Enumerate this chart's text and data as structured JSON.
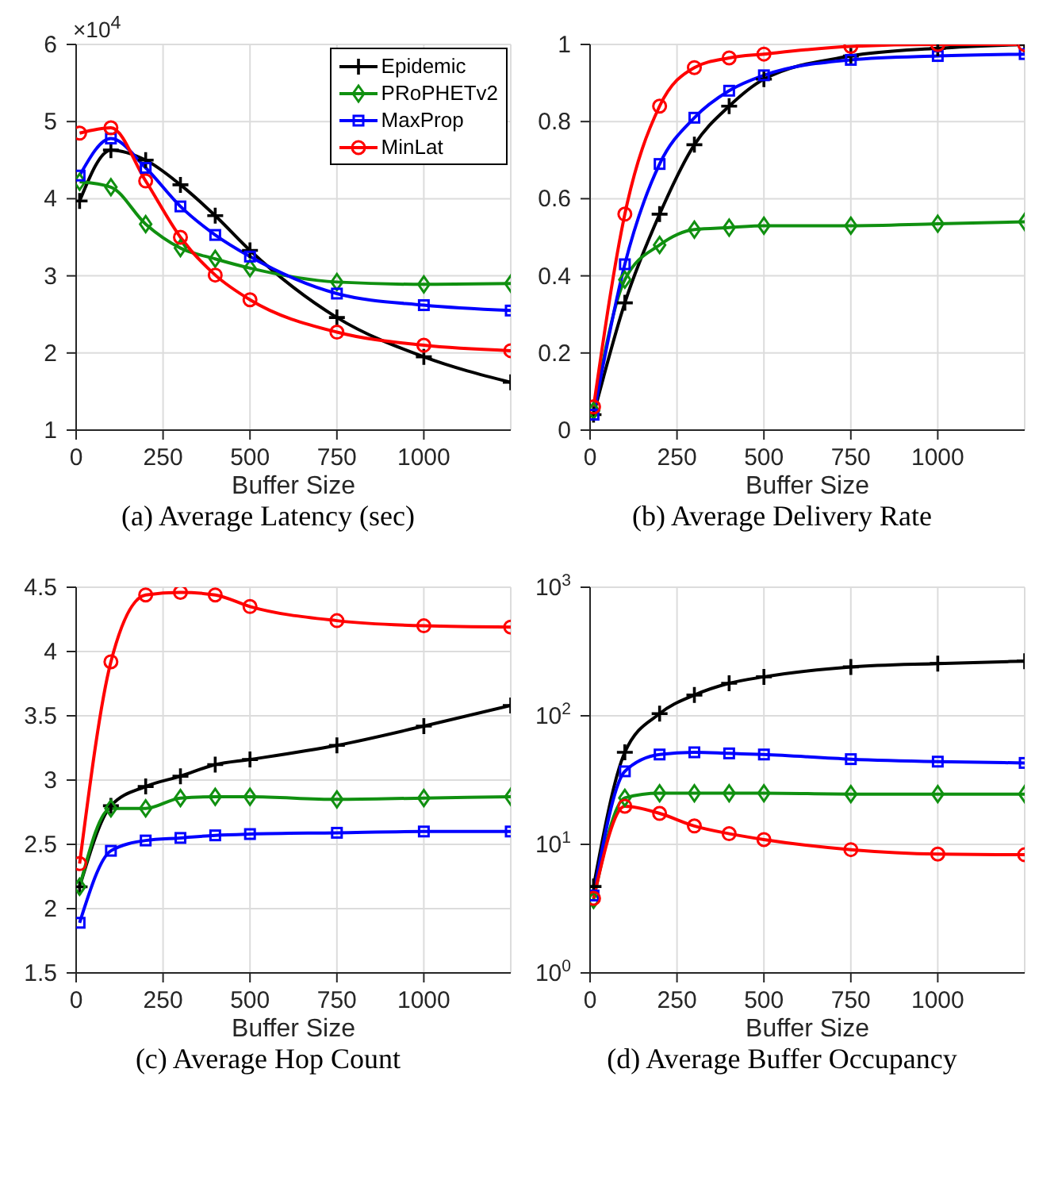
{
  "chart_data": [
    {
      "type": "line",
      "title": "(a) Average Latency (sec)",
      "xlabel": "Buffer Size",
      "annotations": [
        "×10$^{4}$"
      ],
      "x": [
        10,
        100,
        200,
        300,
        400,
        500,
        750,
        1000,
        1250
      ],
      "xlim": [
        0,
        1250
      ],
      "xticks": [
        0,
        250,
        500,
        750,
        1000
      ],
      "ylim": [
        1,
        6
      ],
      "yticks": [
        1,
        2,
        3,
        4,
        5,
        6
      ],
      "grid": true,
      "legend": "top right",
      "series": [
        {
          "name": "Epidemic",
          "color": "#000000",
          "marker": "cross",
          "values": [
            3.97,
            4.63,
            4.5,
            4.18,
            3.78,
            3.33,
            2.46,
            1.95,
            1.62
          ]
        },
        {
          "name": "PRoPHETv2",
          "color": "#109010",
          "marker": "diamond",
          "values": [
            4.22,
            4.15,
            3.67,
            3.36,
            3.22,
            3.1,
            2.92,
            2.89,
            2.9
          ]
        },
        {
          "name": "MaxProp",
          "color": "#0000ff",
          "marker": "square",
          "values": [
            4.3,
            4.78,
            4.4,
            3.9,
            3.53,
            3.25,
            2.77,
            2.62,
            2.55
          ]
        },
        {
          "name": "MinLat",
          "color": "#ff0000",
          "marker": "circle",
          "values": [
            4.85,
            4.92,
            4.23,
            3.5,
            3.01,
            2.69,
            2.27,
            2.1,
            2.03
          ]
        }
      ]
    },
    {
      "type": "line",
      "title": "(b) Average Delivery Rate",
      "xlabel": "Buffer Size",
      "x": [
        10,
        100,
        200,
        300,
        400,
        500,
        750,
        1000,
        1250
      ],
      "xlim": [
        0,
        1250
      ],
      "xticks": [
        0,
        250,
        500,
        750,
        1000
      ],
      "ylim": [
        0,
        1
      ],
      "yticks": [
        0,
        0.2,
        0.4,
        0.6,
        0.8,
        1
      ],
      "grid": true,
      "series": [
        {
          "color": "#000000",
          "marker": "cross",
          "values": [
            0.04,
            0.33,
            0.56,
            0.74,
            0.84,
            0.91,
            0.97,
            0.99,
            1.0
          ]
        },
        {
          "color": "#109010",
          "marker": "diamond",
          "values": [
            0.05,
            0.39,
            0.48,
            0.52,
            0.525,
            0.53,
            0.53,
            0.535,
            0.54
          ]
        },
        {
          "color": "#0000ff",
          "marker": "square",
          "values": [
            0.04,
            0.43,
            0.69,
            0.81,
            0.88,
            0.92,
            0.96,
            0.97,
            0.975
          ]
        },
        {
          "color": "#ff0000",
          "marker": "circle",
          "values": [
            0.06,
            0.56,
            0.84,
            0.94,
            0.965,
            0.975,
            0.995,
            1.0,
            1.0
          ]
        }
      ]
    },
    {
      "type": "line",
      "title": "(c) Average Hop Count",
      "xlabel": "Buffer Size",
      "x": [
        10,
        100,
        200,
        300,
        400,
        500,
        750,
        1000,
        1250
      ],
      "xlim": [
        0,
        1250
      ],
      "xticks": [
        0,
        250,
        500,
        750,
        1000
      ],
      "ylim": [
        1.5,
        4.5
      ],
      "yticks": [
        1.5,
        2,
        2.5,
        3,
        3.5,
        4,
        4.5
      ],
      "grid": true,
      "series": [
        {
          "color": "#000000",
          "marker": "cross",
          "values": [
            2.17,
            2.8,
            2.95,
            3.03,
            3.12,
            3.16,
            3.27,
            3.42,
            3.58
          ]
        },
        {
          "color": "#109010",
          "marker": "diamond",
          "values": [
            2.17,
            2.78,
            2.78,
            2.86,
            2.87,
            2.87,
            2.85,
            2.86,
            2.87
          ]
        },
        {
          "color": "#0000ff",
          "marker": "square",
          "values": [
            1.89,
            2.45,
            2.53,
            2.55,
            2.57,
            2.58,
            2.59,
            2.6,
            2.6
          ]
        },
        {
          "color": "#ff0000",
          "marker": "circle",
          "values": [
            2.35,
            3.92,
            4.44,
            4.46,
            4.44,
            4.35,
            4.24,
            4.2,
            4.19
          ]
        }
      ]
    },
    {
      "type": "line",
      "title": "(d) Average Buffer Occupancy",
      "xlabel": "Buffer Size",
      "x": [
        10,
        100,
        200,
        300,
        400,
        500,
        750,
        1000,
        1250
      ],
      "xlim": [
        0,
        1250
      ],
      "xticks": [
        0,
        250,
        500,
        750,
        1000
      ],
      "log": "y",
      "ylim": [
        1,
        1000
      ],
      "yticks": [
        {
          "value": 1,
          "label": "10$^{0}$"
        },
        {
          "value": 10,
          "label": "10$^{1}$"
        },
        {
          "value": 100,
          "label": "10$^{2}$"
        },
        {
          "value": 1000,
          "label": "10$^{3}$"
        }
      ],
      "grid": true,
      "series": [
        {
          "color": "#000000",
          "marker": "cross",
          "values": [
            4.7,
            52,
            104,
            145,
            179,
            201,
            240,
            255,
            266
          ]
        },
        {
          "color": "#109010",
          "marker": "diamond",
          "values": [
            3.7,
            23,
            25,
            25,
            25,
            25,
            24.6,
            24.6,
            24.6
          ]
        },
        {
          "color": "#0000ff",
          "marker": "square",
          "values": [
            4.0,
            37,
            50,
            52,
            51,
            50,
            46,
            44,
            43
          ]
        },
        {
          "color": "#ff0000",
          "marker": "circle",
          "values": [
            3.8,
            19.8,
            17.4,
            13.9,
            12.1,
            10.9,
            9.1,
            8.4,
            8.3
          ]
        }
      ]
    }
  ]
}
